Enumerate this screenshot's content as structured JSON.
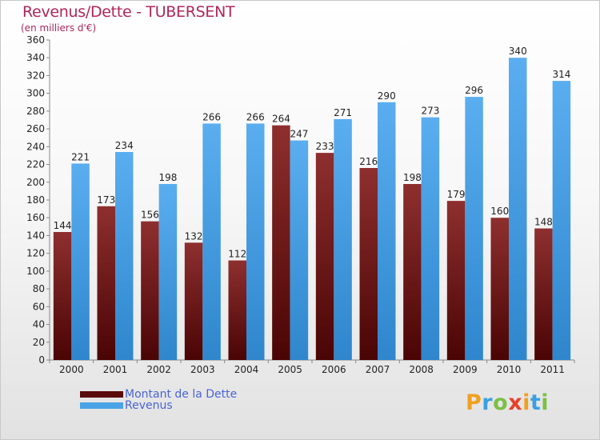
{
  "chart_data": {
    "type": "bar",
    "title": "Revenus/Dette - TUBERSENT",
    "subtitle": "(en milliers d'€)",
    "categories": [
      "2000",
      "2001",
      "2002",
      "2003",
      "2004",
      "2005",
      "2006",
      "2007",
      "2008",
      "2009",
      "2010",
      "2011"
    ],
    "series": [
      {
        "name": "Montant de la Dette",
        "color": "#7a1a1a",
        "values": [
          144,
          173,
          156,
          132,
          112,
          264,
          233,
          216,
          198,
          179,
          160,
          148
        ]
      },
      {
        "name": "Revenus",
        "color": "#4aa3e6",
        "values": [
          221,
          234,
          198,
          266,
          266,
          247,
          271,
          290,
          273,
          296,
          340,
          314
        ]
      }
    ],
    "yticks": [
      0,
      20,
      40,
      60,
      80,
      100,
      120,
      140,
      160,
      180,
      200,
      220,
      240,
      260,
      280,
      300,
      320,
      340,
      360
    ],
    "ylim": [
      0,
      360
    ],
    "grid": false,
    "legend": "bottom-left"
  },
  "logo": {
    "letters": [
      "P",
      "r",
      "o",
      "x",
      "i",
      "t",
      "i"
    ],
    "colors": [
      "#f0a020",
      "#3aa0e0",
      "#7bc043",
      "#e8402a",
      "#f0a020",
      "#3aa0e0",
      "#7bc043"
    ]
  }
}
